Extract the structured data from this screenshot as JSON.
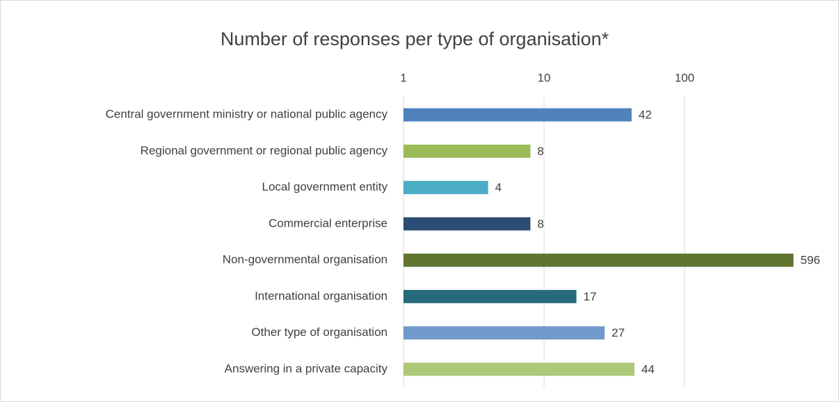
{
  "chart_data": {
    "type": "bar",
    "orientation": "horizontal",
    "title": "Number of responses per type of organisation*",
    "categories": [
      "Central government ministry or national public agency",
      "Regional government or regional public agency",
      "Local government entity",
      "Commercial enterprise",
      "Non-governmental organisation",
      "International organisation",
      "Other type of organisation",
      "Answering in a private capacity"
    ],
    "values": [
      42,
      8,
      4,
      8,
      596,
      17,
      27,
      44
    ],
    "colors": [
      "#4f81bd",
      "#9bbb59",
      "#4bacc6",
      "#2c4d75",
      "#5f7530",
      "#276a7c",
      "#729aca",
      "#afc97a"
    ],
    "xlim": [
      1,
      1000
    ],
    "xticks": [
      1,
      10,
      100
    ],
    "log_x": true,
    "grid": true
  }
}
